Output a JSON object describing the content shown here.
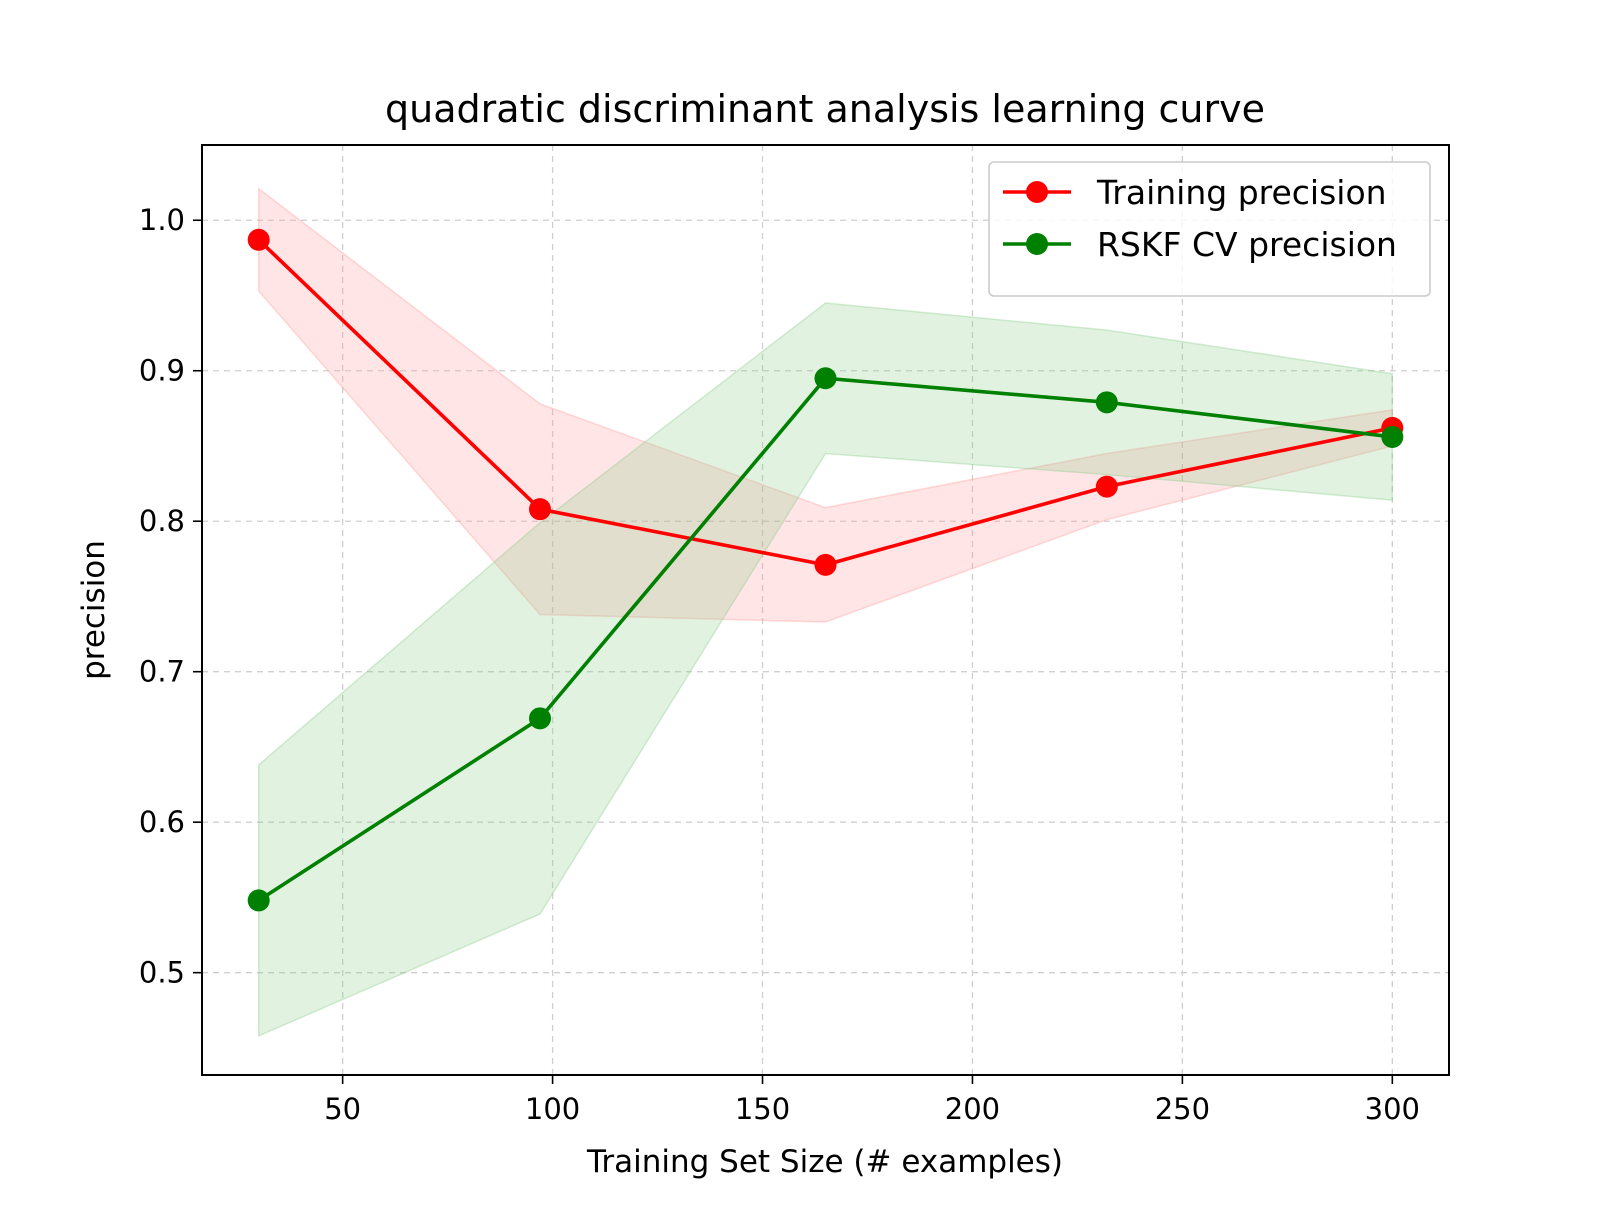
{
  "chart_data": {
    "type": "line",
    "title": "quadratic discriminant analysis learning curve",
    "xlabel": "Training Set Size (# examples)",
    "ylabel": "precision",
    "xlim": [
      16.5,
      313.5
    ],
    "ylim": [
      0.432,
      1.05
    ],
    "xticks": [
      50,
      100,
      150,
      200,
      250,
      300
    ],
    "xtick_labels": [
      "50",
      "100",
      "150",
      "200",
      "250",
      "300"
    ],
    "yticks": [
      0.5,
      0.6,
      0.7,
      0.8,
      0.9,
      1.0
    ],
    "ytick_labels": [
      "0.5",
      "0.6",
      "0.7",
      "0.8",
      "0.9",
      "1.0"
    ],
    "grid": true,
    "legend_position": "upper right",
    "x": [
      30,
      97,
      165,
      232,
      300
    ],
    "series": [
      {
        "name": "Training precision",
        "color": "#ff0000",
        "band_color": "#ff9999",
        "values": [
          0.987,
          0.808,
          0.771,
          0.823,
          0.862
        ],
        "band_upper": [
          1.021,
          0.878,
          0.809,
          0.845,
          0.874
        ],
        "band_lower": [
          0.953,
          0.738,
          0.733,
          0.801,
          0.85
        ]
      },
      {
        "name": "RSKF CV precision",
        "color": "#008000",
        "band_color": "#88cc88",
        "values": [
          0.548,
          0.669,
          0.895,
          0.879,
          0.856
        ],
        "band_upper": [
          0.638,
          0.799,
          0.945,
          0.927,
          0.898
        ],
        "band_lower": [
          0.458,
          0.539,
          0.845,
          0.831,
          0.814
        ]
      }
    ]
  }
}
